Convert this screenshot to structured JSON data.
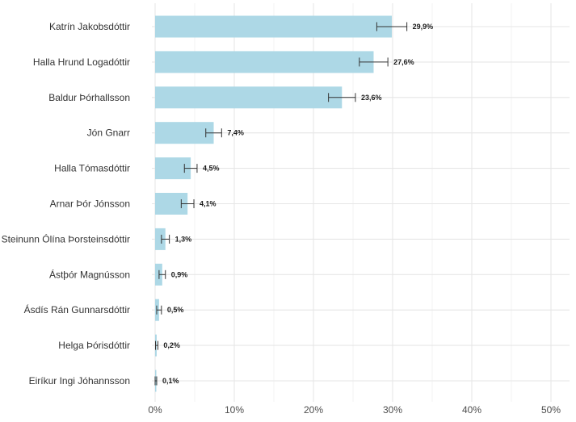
{
  "chart_data": {
    "type": "bar",
    "orientation": "horizontal",
    "title": "",
    "xlabel": "",
    "ylabel": "",
    "xlim": [
      0,
      50
    ],
    "x_ticks": [
      0,
      10,
      20,
      30,
      40,
      50
    ],
    "x_tick_labels": [
      "0%",
      "10%",
      "20%",
      "30%",
      "40%",
      "50%"
    ],
    "grid": true,
    "bar_color": "#add8e6",
    "categories": [
      "Katrín Jakobsdóttir",
      "Halla Hrund Logadóttir",
      "Baldur Þórhallsson",
      "Jón Gnarr",
      "Halla Tómasdóttir",
      "Arnar Þór Jónsson",
      "Steinunn Ólína Þorsteinsdóttir",
      "Ástþór Magnússon",
      "Ásdís Rán Gunnarsdóttir",
      "Helga Þórisdóttir",
      "Eiríkur Ingi Jóhannsson"
    ],
    "values": [
      29.9,
      27.6,
      23.6,
      7.4,
      4.5,
      4.1,
      1.3,
      0.9,
      0.5,
      0.2,
      0.1
    ],
    "value_labels": [
      "29,9%",
      "27,6%",
      "23,6%",
      "7,4%",
      "4,5%",
      "4,1%",
      "1,3%",
      "0,9%",
      "0,5%",
      "0,2%",
      "0,1%"
    ],
    "error_low": [
      28.0,
      25.8,
      21.9,
      6.4,
      3.7,
      3.3,
      0.8,
      0.5,
      0.2,
      0.05,
      0.0
    ],
    "error_high": [
      31.8,
      29.4,
      25.3,
      8.4,
      5.3,
      4.9,
      1.8,
      1.3,
      0.8,
      0.35,
      0.2
    ]
  }
}
